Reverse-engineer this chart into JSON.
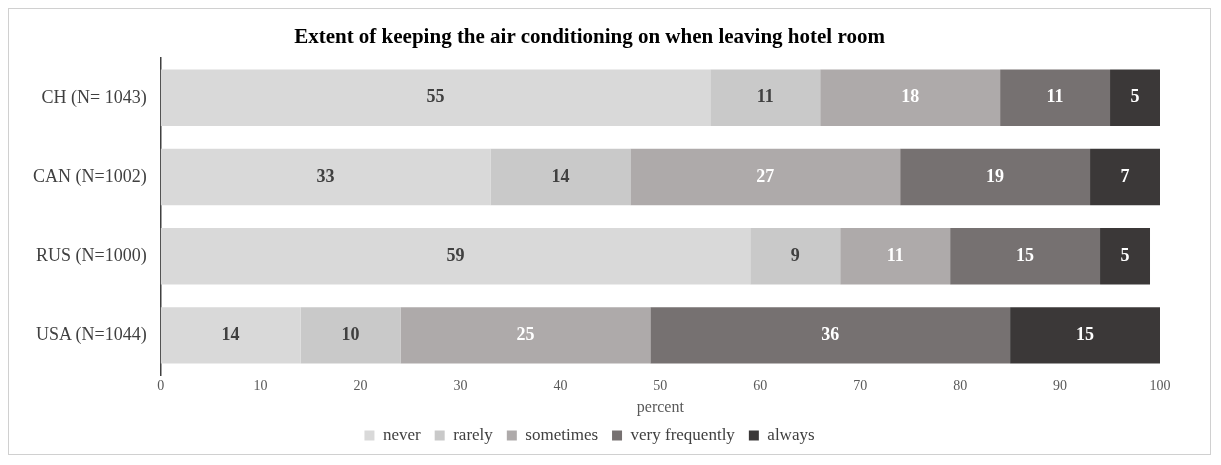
{
  "chart_data": {
    "type": "bar",
    "orientation": "horizontal",
    "stacked": true,
    "title": "Extent of keeping the air conditioning on when leaving hotel room",
    "xlabel": "percent",
    "categories": [
      "CH (N= 1043)",
      "CAN (N=1002)",
      "RUS (N=1000)",
      "USA (N=1044)"
    ],
    "series": [
      {
        "name": "never",
        "color": "#d9d9d9",
        "values": [
          55,
          33,
          59,
          14
        ]
      },
      {
        "name": "rarely",
        "color": "#c9c9c9",
        "values": [
          11,
          14,
          9,
          10
        ]
      },
      {
        "name": "sometimes",
        "color": "#aeaaaa",
        "values": [
          18,
          27,
          11,
          25
        ]
      },
      {
        "name": "very frequently",
        "color": "#767171",
        "values": [
          11,
          19,
          15,
          36
        ]
      },
      {
        "name": "always",
        "color": "#3b3838",
        "values": [
          5,
          7,
          5,
          15
        ]
      }
    ],
    "xlim": [
      0,
      100
    ],
    "xticks": [
      0,
      10,
      20,
      30,
      40,
      50,
      60,
      70,
      80,
      90,
      100
    ],
    "grid": false,
    "legend": "bottom",
    "data_labels": true
  }
}
